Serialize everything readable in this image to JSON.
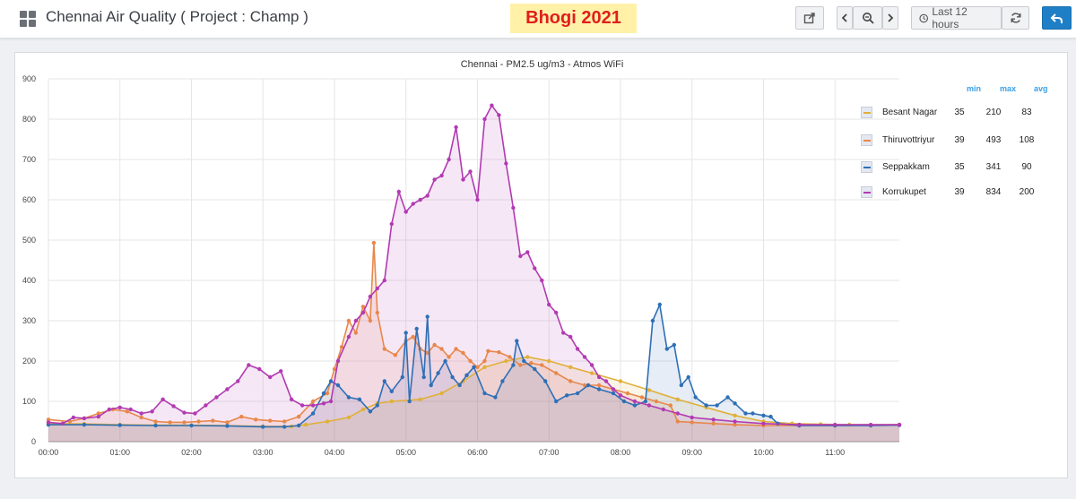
{
  "header": {
    "dashboard_title": "Chennai Air Quality ( Project : Champ )",
    "banner": "Bhogi 2021",
    "time_range_label": "Last 12 hours"
  },
  "legend": {
    "headers": [
      "min",
      "max",
      "avg"
    ],
    "rows": [
      {
        "name": "Besant Nagar",
        "min": "35",
        "max": "210",
        "avg": "83"
      },
      {
        "name": "Thiruvottriyur",
        "min": "39",
        "max": "493",
        "avg": "108"
      },
      {
        "name": "Seppakkam",
        "min": "35",
        "max": "341",
        "avg": "90"
      },
      {
        "name": "Korrukupet",
        "min": "39",
        "max": "834",
        "avg": "200"
      }
    ]
  },
  "chart_data": {
    "type": "line",
    "title": "Chennai - PM2.5 ug/m3 - Atmos WiFi",
    "x_ticks": [
      "00:00",
      "01:00",
      "02:00",
      "03:00",
      "04:00",
      "05:00",
      "06:00",
      "07:00",
      "08:00",
      "09:00",
      "10:00",
      "11:00"
    ],
    "y_ticks": [
      0,
      100,
      200,
      300,
      400,
      500,
      600,
      700,
      800,
      900
    ],
    "xlim": [
      0,
      11.9
    ],
    "ylim": [
      0,
      900
    ],
    "grid": true,
    "legend_position": "right",
    "series": [
      {
        "name": "Besant Nagar",
        "color": "#e0b03a",
        "points": [
          [
            0,
            45
          ],
          [
            0.5,
            44
          ],
          [
            1,
            42
          ],
          [
            1.5,
            41
          ],
          [
            2,
            41
          ],
          [
            2.5,
            40
          ],
          [
            3,
            38
          ],
          [
            3.4,
            38
          ],
          [
            3.6,
            42
          ],
          [
            3.9,
            50
          ],
          [
            4.2,
            60
          ],
          [
            4.4,
            80
          ],
          [
            4.6,
            95
          ],
          [
            4.8,
            100
          ],
          [
            5.2,
            105
          ],
          [
            5.5,
            120
          ],
          [
            5.8,
            150
          ],
          [
            6.1,
            185
          ],
          [
            6.4,
            200
          ],
          [
            6.7,
            210
          ],
          [
            7.0,
            200
          ],
          [
            7.3,
            185
          ],
          [
            7.6,
            170
          ],
          [
            8.0,
            150
          ],
          [
            8.4,
            128
          ],
          [
            8.8,
            105
          ],
          [
            9.2,
            85
          ],
          [
            9.6,
            65
          ],
          [
            10.0,
            50
          ],
          [
            10.4,
            45
          ],
          [
            10.8,
            43
          ],
          [
            11.2,
            42
          ],
          [
            11.9,
            42
          ]
        ]
      },
      {
        "name": "Thiruvottriyur",
        "color": "#e8874a",
        "points": [
          [
            0,
            55
          ],
          [
            0.3,
            50
          ],
          [
            0.5,
            58
          ],
          [
            0.7,
            70
          ],
          [
            0.9,
            80
          ],
          [
            1.1,
            75
          ],
          [
            1.3,
            60
          ],
          [
            1.5,
            50
          ],
          [
            1.7,
            48
          ],
          [
            1.9,
            48
          ],
          [
            2.1,
            50
          ],
          [
            2.3,
            52
          ],
          [
            2.5,
            48
          ],
          [
            2.7,
            62
          ],
          [
            2.9,
            55
          ],
          [
            3.1,
            52
          ],
          [
            3.3,
            50
          ],
          [
            3.5,
            62
          ],
          [
            3.7,
            100
          ],
          [
            3.9,
            120
          ],
          [
            4.0,
            180
          ],
          [
            4.1,
            235
          ],
          [
            4.2,
            300
          ],
          [
            4.3,
            270
          ],
          [
            4.4,
            335
          ],
          [
            4.5,
            300
          ],
          [
            4.55,
            493
          ],
          [
            4.6,
            320
          ],
          [
            4.7,
            230
          ],
          [
            4.85,
            215
          ],
          [
            5.0,
            250
          ],
          [
            5.1,
            260
          ],
          [
            5.2,
            230
          ],
          [
            5.3,
            220
          ],
          [
            5.4,
            240
          ],
          [
            5.5,
            230
          ],
          [
            5.6,
            210
          ],
          [
            5.7,
            230
          ],
          [
            5.8,
            220
          ],
          [
            5.9,
            200
          ],
          [
            6.0,
            185
          ],
          [
            6.1,
            200
          ],
          [
            6.15,
            225
          ],
          [
            6.3,
            222
          ],
          [
            6.45,
            210
          ],
          [
            6.6,
            190
          ],
          [
            6.75,
            195
          ],
          [
            6.9,
            190
          ],
          [
            7.1,
            170
          ],
          [
            7.3,
            150
          ],
          [
            7.5,
            140
          ],
          [
            7.7,
            140
          ],
          [
            7.9,
            130
          ],
          [
            8.1,
            120
          ],
          [
            8.3,
            110
          ],
          [
            8.5,
            100
          ],
          [
            8.7,
            90
          ],
          [
            8.8,
            50
          ],
          [
            9.0,
            48
          ],
          [
            9.3,
            45
          ],
          [
            9.6,
            42
          ],
          [
            10,
            40
          ],
          [
            10.5,
            40
          ],
          [
            11,
            40
          ],
          [
            11.5,
            41
          ],
          [
            11.9,
            42
          ]
        ]
      },
      {
        "name": "Seppakkam",
        "color": "#2f6fb5",
        "points": [
          [
            0,
            42
          ],
          [
            0.5,
            42
          ],
          [
            1,
            41
          ],
          [
            1.5,
            40
          ],
          [
            2,
            40
          ],
          [
            2.5,
            39
          ],
          [
            3,
            37
          ],
          [
            3.3,
            37
          ],
          [
            3.5,
            40
          ],
          [
            3.7,
            70
          ],
          [
            3.85,
            120
          ],
          [
            3.95,
            150
          ],
          [
            4.05,
            140
          ],
          [
            4.2,
            110
          ],
          [
            4.35,
            105
          ],
          [
            4.5,
            75
          ],
          [
            4.6,
            90
          ],
          [
            4.7,
            150
          ],
          [
            4.8,
            125
          ],
          [
            4.95,
            160
          ],
          [
            5.0,
            270
          ],
          [
            5.05,
            100
          ],
          [
            5.15,
            280
          ],
          [
            5.25,
            160
          ],
          [
            5.3,
            310
          ],
          [
            5.35,
            140
          ],
          [
            5.45,
            170
          ],
          [
            5.55,
            200
          ],
          [
            5.65,
            160
          ],
          [
            5.75,
            140
          ],
          [
            5.85,
            165
          ],
          [
            5.95,
            185
          ],
          [
            6.1,
            120
          ],
          [
            6.25,
            110
          ],
          [
            6.35,
            150
          ],
          [
            6.5,
            190
          ],
          [
            6.55,
            250
          ],
          [
            6.65,
            200
          ],
          [
            6.8,
            180
          ],
          [
            6.95,
            150
          ],
          [
            7.1,
            100
          ],
          [
            7.25,
            115
          ],
          [
            7.4,
            120
          ],
          [
            7.55,
            140
          ],
          [
            7.7,
            130
          ],
          [
            7.9,
            120
          ],
          [
            8.05,
            100
          ],
          [
            8.2,
            90
          ],
          [
            8.35,
            100
          ],
          [
            8.45,
            300
          ],
          [
            8.55,
            340
          ],
          [
            8.65,
            230
          ],
          [
            8.75,
            240
          ],
          [
            8.85,
            140
          ],
          [
            8.95,
            160
          ],
          [
            9.05,
            110
          ],
          [
            9.2,
            90
          ],
          [
            9.35,
            90
          ],
          [
            9.5,
            110
          ],
          [
            9.6,
            95
          ],
          [
            9.75,
            70
          ],
          [
            9.85,
            70
          ],
          [
            10.0,
            65
          ],
          [
            10.1,
            62
          ],
          [
            10.2,
            45
          ],
          [
            10.5,
            40
          ],
          [
            11,
            40
          ],
          [
            11.5,
            40
          ],
          [
            11.9,
            41
          ]
        ]
      },
      {
        "name": "Korrukupet",
        "color": "#b23ab2",
        "points": [
          [
            0,
            48
          ],
          [
            0.2,
            45
          ],
          [
            0.35,
            60
          ],
          [
            0.5,
            58
          ],
          [
            0.7,
            62
          ],
          [
            0.85,
            80
          ],
          [
            1.0,
            85
          ],
          [
            1.15,
            80
          ],
          [
            1.3,
            70
          ],
          [
            1.45,
            75
          ],
          [
            1.6,
            105
          ],
          [
            1.75,
            88
          ],
          [
            1.9,
            72
          ],
          [
            2.05,
            70
          ],
          [
            2.2,
            90
          ],
          [
            2.35,
            110
          ],
          [
            2.5,
            130
          ],
          [
            2.65,
            150
          ],
          [
            2.8,
            190
          ],
          [
            2.95,
            180
          ],
          [
            3.1,
            160
          ],
          [
            3.25,
            175
          ],
          [
            3.4,
            105
          ],
          [
            3.55,
            90
          ],
          [
            3.7,
            90
          ],
          [
            3.85,
            95
          ],
          [
            3.95,
            100
          ],
          [
            4.05,
            200
          ],
          [
            4.2,
            260
          ],
          [
            4.3,
            300
          ],
          [
            4.4,
            320
          ],
          [
            4.5,
            360
          ],
          [
            4.6,
            380
          ],
          [
            4.7,
            400
          ],
          [
            4.8,
            540
          ],
          [
            4.9,
            620
          ],
          [
            5.0,
            570
          ],
          [
            5.1,
            590
          ],
          [
            5.2,
            600
          ],
          [
            5.3,
            610
          ],
          [
            5.4,
            650
          ],
          [
            5.5,
            660
          ],
          [
            5.6,
            700
          ],
          [
            5.7,
            780
          ],
          [
            5.8,
            650
          ],
          [
            5.9,
            670
          ],
          [
            6.0,
            600
          ],
          [
            6.1,
            800
          ],
          [
            6.2,
            834
          ],
          [
            6.3,
            810
          ],
          [
            6.4,
            690
          ],
          [
            6.5,
            580
          ],
          [
            6.6,
            460
          ],
          [
            6.7,
            470
          ],
          [
            6.8,
            430
          ],
          [
            6.9,
            400
          ],
          [
            7.0,
            340
          ],
          [
            7.1,
            320
          ],
          [
            7.2,
            270
          ],
          [
            7.3,
            260
          ],
          [
            7.4,
            230
          ],
          [
            7.5,
            210
          ],
          [
            7.6,
            190
          ],
          [
            7.7,
            160
          ],
          [
            7.8,
            150
          ],
          [
            7.9,
            130
          ],
          [
            8.0,
            115
          ],
          [
            8.2,
            100
          ],
          [
            8.4,
            90
          ],
          [
            8.6,
            80
          ],
          [
            8.8,
            70
          ],
          [
            9.0,
            60
          ],
          [
            9.3,
            55
          ],
          [
            9.6,
            50
          ],
          [
            10,
            45
          ],
          [
            10.5,
            42
          ],
          [
            11,
            42
          ],
          [
            11.5,
            42
          ],
          [
            11.9,
            42
          ]
        ]
      }
    ]
  }
}
